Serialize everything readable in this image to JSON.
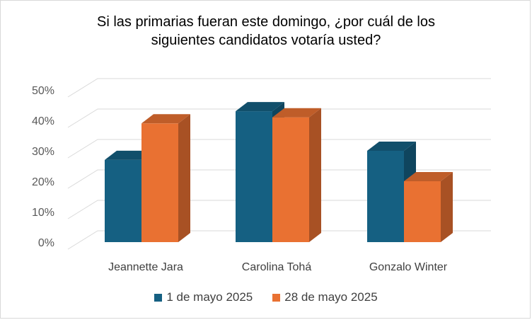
{
  "chart_data": {
    "type": "bar",
    "title_lines": [
      "Si las primarias fueran este domingo, ¿por cuál de los",
      "siguientes candidatos votaría usted?"
    ],
    "categories": [
      "Jeannette Jara",
      "Carolina Tohá",
      "Gonzalo Winter"
    ],
    "series": [
      {
        "name": "1 de mayo 2025",
        "values": [
          27,
          43,
          30
        ],
        "color": "#156082"
      },
      {
        "name": "28 de mayo 2025",
        "values": [
          39,
          41,
          20
        ],
        "color": "#E97132"
      }
    ],
    "ylim": [
      0,
      50
    ],
    "yticks": [
      "0%",
      "10%",
      "20%",
      "30%",
      "40%",
      "50%"
    ],
    "grid": true,
    "legend_position": "bottom",
    "style": "3d-clustered-column"
  }
}
